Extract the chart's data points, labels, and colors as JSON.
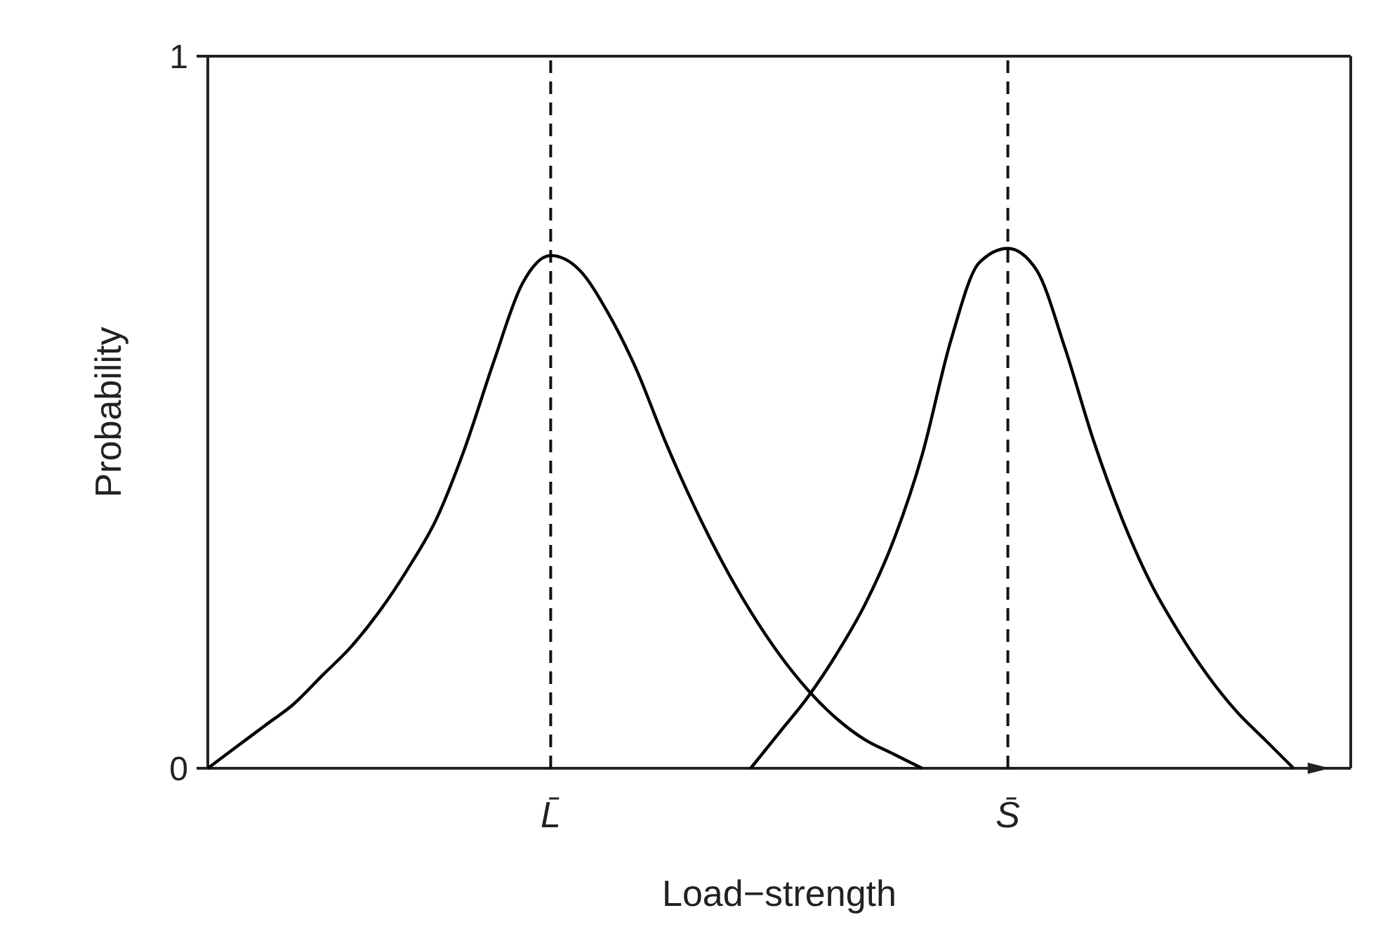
{
  "chart_data": {
    "type": "line",
    "xlabel": "Load−strength",
    "ylabel": "Probability",
    "categories": [
      null,
      null,
      null,
      null,
      null,
      null,
      null,
      null,
      null,
      null,
      null,
      null,
      "L̄",
      null,
      null,
      null,
      null,
      null,
      null,
      null,
      null,
      null,
      null,
      null,
      null,
      null,
      null,
      null,
      "S̄",
      null,
      null,
      null,
      null,
      null,
      null,
      null,
      null,
      null,
      null,
      null,
      null
    ],
    "ylim": [
      0,
      1
    ],
    "yticks": [
      0,
      1
    ],
    "series": [
      {
        "color": "#000000",
        "values": [
          0,
          0.03,
          0.06,
          0.09,
          0.13,
          0.17,
          0.22,
          0.28,
          0.35,
          0.45,
          0.57,
          0.68,
          0.72,
          0.7,
          0.64,
          0.56,
          0.46,
          0.37,
          0.29,
          0.22,
          0.16,
          0.11,
          0.07,
          0.04,
          0.02,
          0,
          null,
          null,
          null,
          null,
          null,
          null,
          null,
          null,
          null,
          null,
          null,
          null,
          null,
          null,
          null
        ]
      },
      {
        "color": "#000000",
        "values": [
          null,
          null,
          null,
          null,
          null,
          null,
          null,
          null,
          null,
          null,
          null,
          null,
          null,
          null,
          null,
          null,
          null,
          null,
          null,
          0,
          0.05,
          0.1,
          0.16,
          0.23,
          0.32,
          0.44,
          0.6,
          0.71,
          0.73,
          0.7,
          0.59,
          0.46,
          0.35,
          0.26,
          0.19,
          0.13,
          0.08,
          0.04,
          0,
          null,
          null
        ]
      }
    ],
    "ref_lines": [
      {
        "axis": "x",
        "value": "L̄",
        "line_style": "dashed"
      },
      {
        "axis": "x",
        "value": "S̄",
        "line_style": "dashed"
      }
    ],
    "legend": false,
    "marker": "none",
    "line_style": "solid"
  }
}
